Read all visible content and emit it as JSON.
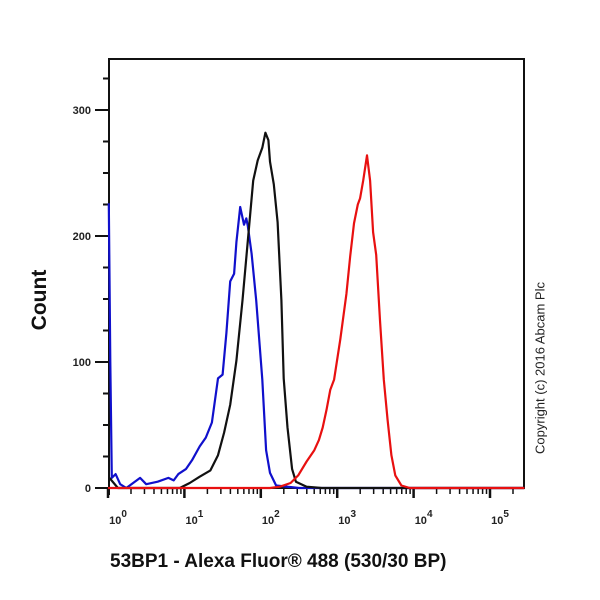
{
  "chart": {
    "ylabel": "Count",
    "xlabel": "53BP1 - Alexa Fluor® 488 (530/30 BP)",
    "copyright": "Copyright (c) 2016 Abcam Plc"
  },
  "chart_data": {
    "type": "line",
    "title": "",
    "xlabel": "53BP1 - Alexa Fluor® 488 (530/30 BP)",
    "ylabel": "Count",
    "xscale": "log",
    "xlim_log10": [
      0,
      5.45
    ],
    "ylim": [
      0,
      340
    ],
    "x_tick_labels": [
      "10^0",
      "10^1",
      "10^2",
      "10^3",
      "10^4",
      "10^5"
    ],
    "x_ticks_log10": [
      0,
      1,
      2,
      3,
      4,
      5
    ],
    "y_ticks": [
      0,
      100,
      200,
      300
    ],
    "y_tick_labels": [
      "0",
      "100",
      "200",
      "300"
    ],
    "grid": false,
    "legend": null,
    "series": [
      {
        "name": "blue",
        "color": "#1010cc",
        "points_log10x_count": [
          [
            0.01,
            226
          ],
          [
            0.03,
            100
          ],
          [
            0.05,
            8
          ],
          [
            0.1,
            11
          ],
          [
            0.16,
            3
          ],
          [
            0.24,
            0
          ],
          [
            0.42,
            8
          ],
          [
            0.5,
            3
          ],
          [
            0.65,
            5
          ],
          [
            0.79,
            8
          ],
          [
            0.86,
            6
          ],
          [
            0.92,
            11
          ],
          [
            1.02,
            15
          ],
          [
            1.1,
            22
          ],
          [
            1.2,
            33
          ],
          [
            1.28,
            40
          ],
          [
            1.36,
            52
          ],
          [
            1.44,
            87
          ],
          [
            1.5,
            90
          ],
          [
            1.55,
            123
          ],
          [
            1.6,
            164
          ],
          [
            1.65,
            170
          ],
          [
            1.68,
            195
          ],
          [
            1.73,
            223
          ],
          [
            1.78,
            209
          ],
          [
            1.81,
            214
          ],
          [
            1.83,
            208
          ],
          [
            1.88,
            186
          ],
          [
            1.94,
            149
          ],
          [
            2.02,
            86
          ],
          [
            2.07,
            30
          ],
          [
            2.12,
            12
          ],
          [
            2.2,
            2
          ],
          [
            2.5,
            0
          ],
          [
            5.45,
            0
          ]
        ]
      },
      {
        "name": "black",
        "color": "#111111",
        "points_log10x_count": [
          [
            0.02,
            8
          ],
          [
            0.13,
            0
          ],
          [
            0.94,
            0
          ],
          [
            1.07,
            4
          ],
          [
            1.2,
            9
          ],
          [
            1.34,
            14
          ],
          [
            1.44,
            26
          ],
          [
            1.52,
            44
          ],
          [
            1.6,
            66
          ],
          [
            1.68,
            101
          ],
          [
            1.76,
            149
          ],
          [
            1.83,
            196
          ],
          [
            1.9,
            244
          ],
          [
            1.96,
            260
          ],
          [
            2.02,
            270
          ],
          [
            2.06,
            282
          ],
          [
            2.1,
            276
          ],
          [
            2.12,
            259
          ],
          [
            2.17,
            241
          ],
          [
            2.22,
            211
          ],
          [
            2.27,
            149
          ],
          [
            2.3,
            87
          ],
          [
            2.35,
            48
          ],
          [
            2.41,
            15
          ],
          [
            2.46,
            5
          ],
          [
            2.6,
            1
          ],
          [
            2.8,
            0
          ],
          [
            5.45,
            0
          ]
        ]
      },
      {
        "name": "red",
        "color": "#e81010",
        "points_log10x_count": [
          [
            0.0,
            0
          ],
          [
            2.12,
            0
          ],
          [
            2.25,
            1
          ],
          [
            2.39,
            4
          ],
          [
            2.49,
            10
          ],
          [
            2.6,
            21
          ],
          [
            2.7,
            30
          ],
          [
            2.76,
            38
          ],
          [
            2.81,
            48
          ],
          [
            2.86,
            62
          ],
          [
            2.91,
            78
          ],
          [
            2.96,
            86
          ],
          [
            3.04,
            118
          ],
          [
            3.12,
            154
          ],
          [
            3.17,
            184
          ],
          [
            3.22,
            210
          ],
          [
            3.27,
            225
          ],
          [
            3.3,
            230
          ],
          [
            3.34,
            244
          ],
          [
            3.39,
            264
          ],
          [
            3.43,
            244
          ],
          [
            3.47,
            203
          ],
          [
            3.51,
            185
          ],
          [
            3.56,
            133
          ],
          [
            3.61,
            86
          ],
          [
            3.66,
            54
          ],
          [
            3.71,
            26
          ],
          [
            3.76,
            10
          ],
          [
            3.84,
            2
          ],
          [
            3.95,
            0
          ],
          [
            5.45,
            0
          ]
        ]
      }
    ]
  }
}
